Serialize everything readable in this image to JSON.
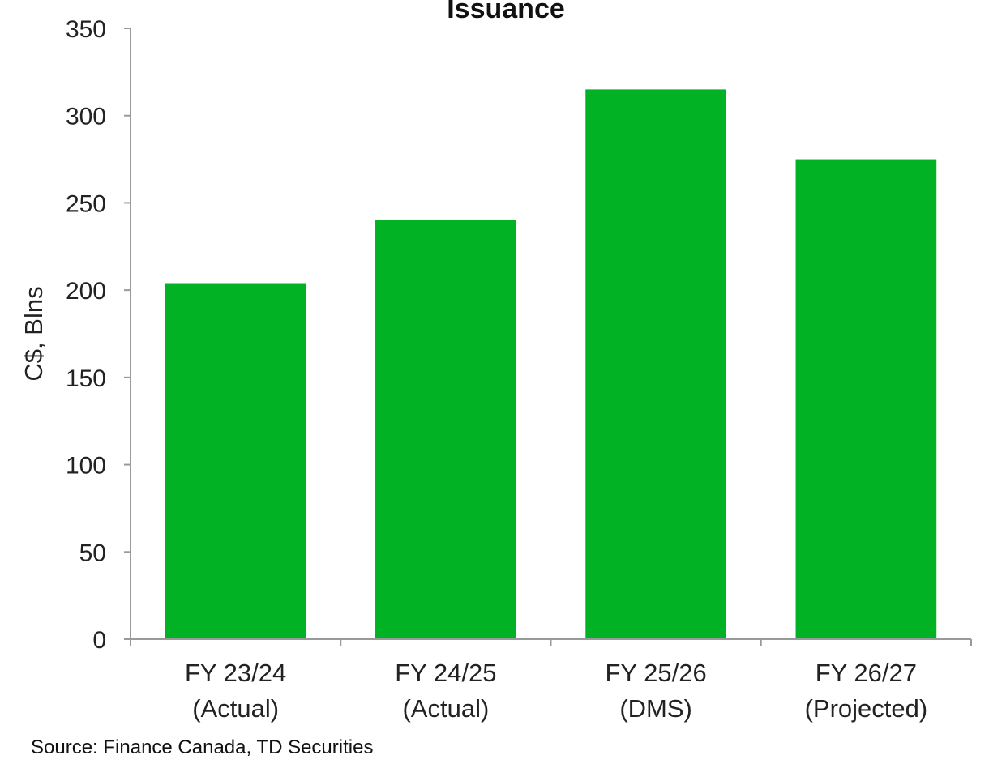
{
  "chart_data": {
    "type": "bar",
    "title": "Issuance",
    "ylabel": "C$, Blns",
    "xlabel": "",
    "categories": [
      [
        "FY 23/24",
        "(Actual)"
      ],
      [
        "FY 24/25",
        "(Actual)"
      ],
      [
        "FY 25/26",
        "(DMS)"
      ],
      [
        "FY 26/27",
        "(Projected)"
      ]
    ],
    "values": [
      204,
      240,
      315,
      275
    ],
    "ylim": [
      0,
      350
    ],
    "yticks": [
      0,
      50,
      100,
      150,
      200,
      250,
      300,
      350
    ],
    "grid": false,
    "legend": "none",
    "bar_color": "#00B224",
    "source": "Source: Finance Canada, TD Securities"
  }
}
